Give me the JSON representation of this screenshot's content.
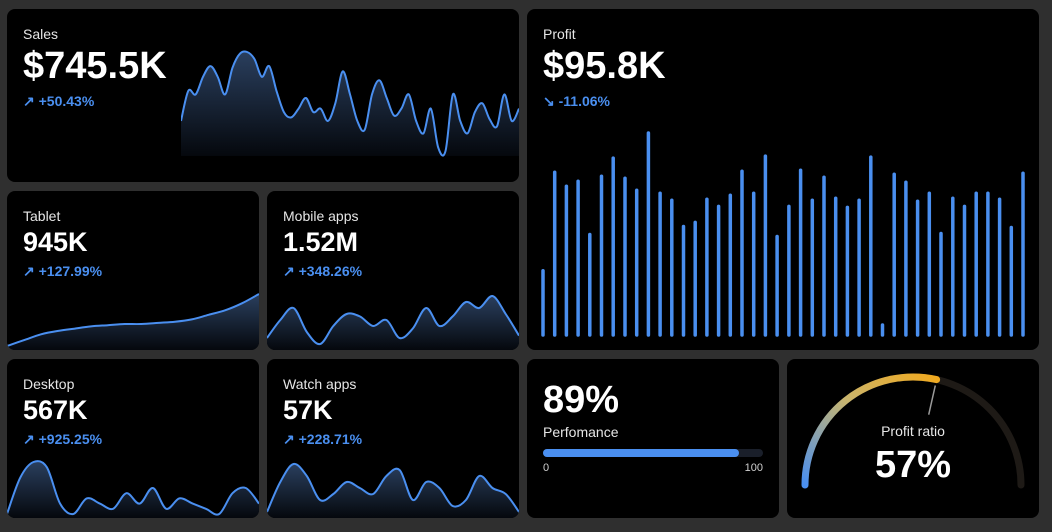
{
  "colors": {
    "accent": "#4a8ff0",
    "card": "#000000",
    "background": "#2f2f2f",
    "gauge_warm": "#f0a91f"
  },
  "cards": {
    "sales": {
      "label": "Sales",
      "value": "$745.5K",
      "trend_icon": "↗",
      "delta": "+50.43%",
      "spark": [
        45,
        62,
        60,
        70,
        76,
        70,
        60,
        75,
        83,
        84,
        80,
        70,
        76,
        62,
        50,
        47,
        52,
        58,
        50,
        52,
        45,
        55,
        73,
        60,
        45,
        40,
        60,
        68,
        58,
        48,
        52,
        60,
        45,
        38,
        52,
        30,
        28,
        60,
        45,
        38,
        50,
        55,
        46,
        42,
        60,
        45,
        52
      ]
    },
    "tablet": {
      "label": "Tablet",
      "value": "945K",
      "trend_icon": "↗",
      "delta": "+127.99%",
      "spark": [
        5,
        10,
        15,
        18,
        20,
        22,
        23,
        24,
        24,
        25,
        26,
        28,
        32,
        36,
        42,
        50
      ]
    },
    "mobile": {
      "label": "Mobile apps",
      "value": "1.52M",
      "trend_icon": "↗",
      "delta": "+348.26%",
      "spark": [
        20,
        35,
        45,
        25,
        15,
        30,
        40,
        38,
        30,
        35,
        20,
        28,
        45,
        30,
        38,
        50,
        45,
        55,
        40,
        22
      ]
    },
    "desktop": {
      "label": "Desktop",
      "value": "567K",
      "trend_icon": "↗",
      "delta": "+925.25%",
      "spark": [
        10,
        45,
        60,
        55,
        20,
        10,
        25,
        20,
        15,
        30,
        20,
        35,
        15,
        25,
        20,
        15,
        10,
        30,
        35,
        20
      ]
    },
    "watch": {
      "label": "Watch apps",
      "value": "57K",
      "trend_icon": "↗",
      "delta": "+228.71%",
      "spark": [
        10,
        35,
        50,
        40,
        20,
        25,
        35,
        30,
        25,
        40,
        45,
        20,
        35,
        30,
        15,
        20,
        40,
        30,
        25,
        10
      ]
    },
    "profit": {
      "label": "Profit",
      "value": "$95.8K",
      "trend_icon": "↘",
      "delta": "-11.06%",
      "bars": [
        64,
        162,
        148,
        153,
        100,
        158,
        176,
        156,
        144,
        201,
        141,
        134,
        108,
        112,
        135,
        128,
        139,
        163,
        141,
        178,
        98,
        128,
        164,
        134,
        157,
        136,
        127,
        134,
        177,
        10,
        160,
        152,
        133,
        141,
        101,
        136,
        128,
        141,
        141,
        135,
        107,
        161
      ]
    },
    "performance": {
      "value": "89%",
      "label": "Perfomance",
      "min": "0",
      "max": "100",
      "progress": 0.89
    },
    "profit_ratio": {
      "label": "Profit ratio",
      "value": "57%",
      "ratio": 0.57
    }
  }
}
